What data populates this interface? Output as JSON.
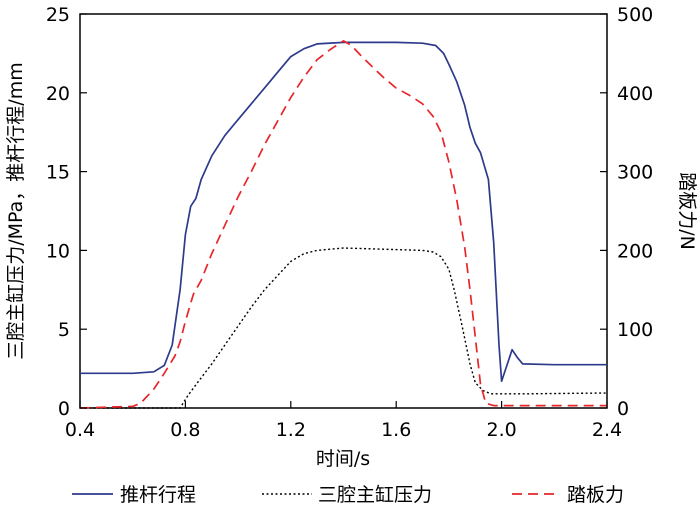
{
  "chart_data": {
    "type": "line",
    "xlabel": "时间/s",
    "ylabel_left": "三腔主缸压力/MPa，推杆行程/mm",
    "ylabel_right": "踏板力/N",
    "xlim": [
      0.4,
      2.4
    ],
    "ylim_left": [
      0,
      25
    ],
    "ylim_right": [
      0,
      500
    ],
    "x_ticks": [
      0.4,
      0.8,
      1.2,
      1.6,
      2.0,
      2.4
    ],
    "x_tick_labels": [
      "0.4",
      "0.8",
      "1.2",
      "1.6",
      "2.0",
      "2.4"
    ],
    "y_left_ticks": [
      0,
      5,
      10,
      15,
      20,
      25
    ],
    "y_left_tick_labels": [
      "0",
      "5",
      "10",
      "15",
      "20",
      "25"
    ],
    "y_right_ticks": [
      0,
      100,
      200,
      300,
      400,
      500
    ],
    "y_right_tick_labels": [
      "0",
      "100",
      "200",
      "300",
      "400",
      "500"
    ],
    "grid": false,
    "legend_position": "bottom",
    "series": [
      {
        "name": "推杆行程",
        "axis": "left",
        "color": "#2e3a8c",
        "style": "solid",
        "points": [
          [
            0.4,
            2.2
          ],
          [
            0.6,
            2.2
          ],
          [
            0.68,
            2.3
          ],
          [
            0.72,
            2.7
          ],
          [
            0.75,
            4.0
          ],
          [
            0.78,
            7.5
          ],
          [
            0.8,
            11.0
          ],
          [
            0.82,
            12.8
          ],
          [
            0.84,
            13.3
          ],
          [
            0.86,
            14.5
          ],
          [
            0.9,
            16.0
          ],
          [
            0.95,
            17.3
          ],
          [
            1.0,
            18.3
          ],
          [
            1.05,
            19.3
          ],
          [
            1.1,
            20.3
          ],
          [
            1.15,
            21.3
          ],
          [
            1.2,
            22.3
          ],
          [
            1.25,
            22.8
          ],
          [
            1.3,
            23.1
          ],
          [
            1.4,
            23.2
          ],
          [
            1.5,
            23.2
          ],
          [
            1.6,
            23.2
          ],
          [
            1.7,
            23.15
          ],
          [
            1.75,
            23.0
          ],
          [
            1.78,
            22.5
          ],
          [
            1.8,
            21.8
          ],
          [
            1.83,
            20.7
          ],
          [
            1.86,
            19.2
          ],
          [
            1.88,
            17.8
          ],
          [
            1.9,
            16.8
          ],
          [
            1.92,
            16.2
          ],
          [
            1.95,
            14.5
          ],
          [
            1.97,
            10.5
          ],
          [
            1.99,
            4.0
          ],
          [
            2.0,
            1.7
          ],
          [
            2.02,
            2.7
          ],
          [
            2.04,
            3.7
          ],
          [
            2.06,
            3.2
          ],
          [
            2.08,
            2.8
          ],
          [
            2.2,
            2.75
          ],
          [
            2.4,
            2.75
          ]
        ]
      },
      {
        "name": "三腔主缸压力",
        "axis": "left",
        "color": "#000000",
        "style": "dotted",
        "points": [
          [
            0.4,
            0.0
          ],
          [
            0.78,
            0.0
          ],
          [
            0.81,
            0.8
          ],
          [
            0.85,
            1.7
          ],
          [
            0.9,
            2.8
          ],
          [
            0.95,
            4.0
          ],
          [
            1.0,
            5.2
          ],
          [
            1.05,
            6.4
          ],
          [
            1.1,
            7.5
          ],
          [
            1.15,
            8.4
          ],
          [
            1.2,
            9.3
          ],
          [
            1.25,
            9.8
          ],
          [
            1.3,
            10.0
          ],
          [
            1.4,
            10.15
          ],
          [
            1.5,
            10.1
          ],
          [
            1.6,
            10.05
          ],
          [
            1.7,
            10.0
          ],
          [
            1.74,
            9.9
          ],
          [
            1.77,
            9.6
          ],
          [
            1.8,
            8.8
          ],
          [
            1.82,
            7.5
          ],
          [
            1.85,
            5.2
          ],
          [
            1.88,
            2.8
          ],
          [
            1.9,
            1.6
          ],
          [
            1.93,
            1.1
          ],
          [
            1.96,
            0.9
          ],
          [
            2.1,
            0.9
          ],
          [
            2.4,
            0.95
          ]
        ]
      },
      {
        "name": "踏板力",
        "axis": "right",
        "color": "#e8262b",
        "style": "dashed",
        "points": [
          [
            0.4,
            0
          ],
          [
            0.6,
            2
          ],
          [
            0.63,
            6
          ],
          [
            0.68,
            24
          ],
          [
            0.72,
            44
          ],
          [
            0.76,
            66
          ],
          [
            0.78,
            84
          ],
          [
            0.8,
            110
          ],
          [
            0.83,
            144
          ],
          [
            0.86,
            162
          ],
          [
            0.9,
            196
          ],
          [
            0.95,
            232
          ],
          [
            1.0,
            268
          ],
          [
            1.05,
            300
          ],
          [
            1.1,
            334
          ],
          [
            1.15,
            364
          ],
          [
            1.2,
            394
          ],
          [
            1.25,
            420
          ],
          [
            1.3,
            442
          ],
          [
            1.35,
            455
          ],
          [
            1.4,
            466
          ],
          [
            1.43,
            460
          ],
          [
            1.47,
            446
          ],
          [
            1.5,
            436
          ],
          [
            1.55,
            420
          ],
          [
            1.6,
            406
          ],
          [
            1.65,
            397
          ],
          [
            1.7,
            386
          ],
          [
            1.74,
            370
          ],
          [
            1.77,
            350
          ],
          [
            1.8,
            312
          ],
          [
            1.83,
            264
          ],
          [
            1.86,
            204
          ],
          [
            1.88,
            150
          ],
          [
            1.9,
            90
          ],
          [
            1.92,
            30
          ],
          [
            1.94,
            6
          ],
          [
            1.97,
            3
          ],
          [
            2.4,
            3
          ]
        ]
      }
    ]
  }
}
